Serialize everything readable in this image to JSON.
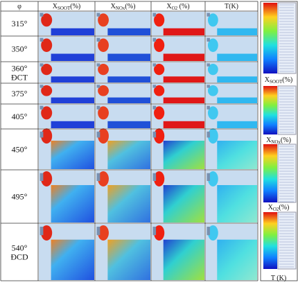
{
  "header": {
    "phi": "φ",
    "columns": [
      {
        "symbol": "X",
        "sub": "SOOT",
        "unit": "(%)"
      },
      {
        "symbol": "X",
        "sub": "NOx",
        "unit": "(%)"
      },
      {
        "symbol": "X",
        "sub": "O2",
        "unit": "  (%)"
      },
      {
        "symbol": "T(K)"
      }
    ]
  },
  "rows": [
    {
      "angle": "315°"
    },
    {
      "angle": "350°"
    },
    {
      "angle": "360°",
      "note": "ĐCT"
    },
    {
      "angle": "375°"
    },
    {
      "angle": "405°"
    },
    {
      "angle": "450°"
    },
    {
      "angle": "495°"
    },
    {
      "angle": "540°",
      "note": "ĐCD"
    }
  ],
  "legend": [
    {
      "symbol": "X",
      "sub": "SOOT",
      "unit": "(%)"
    },
    {
      "symbol": "X",
      "sub": "NOx",
      "unit": "(%)"
    },
    {
      "symbol": "X",
      "sub": "O2",
      "unit": "(%)"
    },
    {
      "symbol": "T (K)"
    }
  ]
}
